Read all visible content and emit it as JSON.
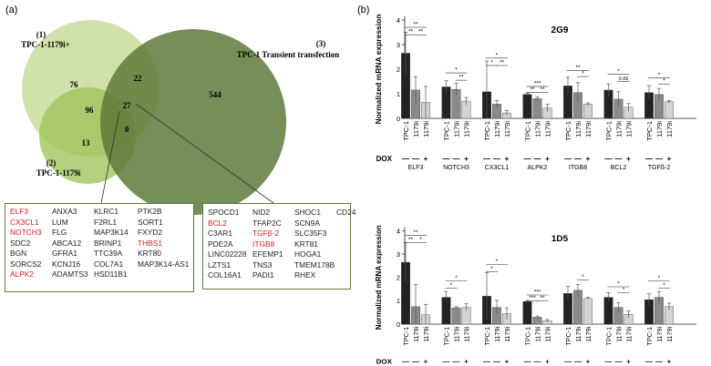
{
  "panel_a": {
    "label": "(a)",
    "venn": {
      "set1": {
        "number": "(1)",
        "name": "TPC-1-1179i+"
      },
      "set2": {
        "number": "(2)",
        "name": "TPC-1-1179i"
      },
      "set3": {
        "number": "(3)",
        "name": "TPC-1 Transient transfection"
      },
      "counts": {
        "only1": "76",
        "only3": "544",
        "s1_s3": "22",
        "s1_s2": "96",
        "all": "27",
        "only2": "13",
        "s2_s3": "0"
      },
      "colors": {
        "set1": "#c9dc9b",
        "set2": "#9bc255",
        "set3": "#5e7a3a"
      }
    },
    "left_box_columns": [
      [
        "ELF3",
        "CX3CL1",
        "NOTCH3",
        "SDC2",
        "BGN",
        "SORCS2",
        "ALPK2"
      ],
      [
        "ANXA3",
        "LUM",
        "FLG",
        "ABCA12",
        "GFRA1",
        "KCNJ16",
        "ADAMTS3"
      ],
      [
        "KLRC1",
        "F2RL1",
        "MAP3K14",
        "BRINP1",
        "TTC39A",
        "COL7A1",
        "HSD11B1"
      ],
      [
        "PTK2B",
        "SORT1",
        "FXYD2",
        "THBS1",
        "KRT80",
        "MAP3K14-AS1"
      ]
    ],
    "right_box_columns": [
      [
        "SPOCD1",
        "BCL2",
        "C3AR1",
        "PDE2A",
        "LINC02228",
        "LZTS1",
        "COL16A1"
      ],
      [
        "NID2",
        "TFAP2C",
        "TGFβ-2",
        "ITGB8",
        "EFEMP1",
        "TNS3",
        "PADI1"
      ],
      [
        "SHOC1",
        "SCN9A",
        "SLC35F3",
        "KRT81",
        "HOGA1",
        "TMEM178B",
        "RHEX"
      ],
      [
        "CD24"
      ]
    ],
    "highlighted_genes": [
      "ELF3",
      "CX3CL1",
      "NOTCH3",
      "ALPK2",
      "THBS1",
      "BCL2",
      "TGFβ-2",
      "ITGB8"
    ],
    "highlight_color": "#cc1f1f"
  },
  "panel_b": {
    "label": "(b)",
    "ylabel": "Normalized mRNA expression",
    "xtick_labels": [
      "TPC-1",
      "1179i",
      "1179i"
    ],
    "dox_label": "DOX",
    "dox_signs": [
      "—",
      "—",
      "+"
    ],
    "chart_data": [
      {
        "type": "bar",
        "title": "2G9",
        "ylabel": "Normalized mRNA expression",
        "ylim": [
          0,
          4
        ],
        "yticks": [
          "0",
          "1",
          "2",
          "3",
          "4"
        ],
        "groups": [
          "ELF3",
          "NOTCH3",
          "CX3CL1",
          "ALPK2",
          "ITGB8",
          "BCL2",
          "TGFß-2"
        ],
        "series": [
          {
            "values": [
              2.65,
              1.28,
              1.08,
              0.97,
              1.32,
              1.15,
              1.05
            ],
            "errors": [
              0.85,
              0.25,
              1.25,
              0.05,
              0.35,
              0.25,
              0.28
            ]
          },
          {
            "values": [
              1.15,
              1.18,
              0.58,
              0.8,
              1.05,
              0.78,
              0.97
            ],
            "errors": [
              0.55,
              0.25,
              0.15,
              0.08,
              0.4,
              0.3,
              0.25
            ]
          },
          {
            "values": [
              0.65,
              0.7,
              0.22,
              0.42,
              0.58,
              0.45,
              0.68
            ],
            "errors": [
              0.65,
              0.15,
              0.1,
              0.15,
              0.05,
              0.15,
              0.05
            ]
          }
        ],
        "annotations": [
          {
            "group": 0,
            "brackets": [
              [
                "**",
                0,
                2,
                3.7
              ],
              [
                "**",
                0,
                1,
                3.4
              ],
              [
                "**",
                1,
                2,
                3.4
              ]
            ]
          },
          {
            "group": 1,
            "brackets": [
              [
                "*",
                0,
                2,
                1.85
              ],
              [
                "**",
                1,
                2,
                1.55
              ]
            ]
          },
          {
            "group": 2,
            "brackets": [
              [
                "*",
                0,
                2,
                2.45
              ],
              [
                "*",
                0,
                1,
                2.15
              ],
              [
                "**",
                1,
                2,
                2.15
              ]
            ]
          },
          {
            "group": 3,
            "brackets": [
              [
                "***",
                0,
                2,
                1.3
              ],
              [
                "**",
                0,
                1,
                1.05
              ],
              [
                "**",
                1,
                2,
                1.05
              ]
            ]
          },
          {
            "group": 4,
            "brackets": [
              [
                "**",
                0,
                2,
                1.95
              ],
              [
                "*",
                1,
                2,
                1.7
              ]
            ]
          },
          {
            "group": 5,
            "brackets": [
              [
                "*",
                0,
                2,
                1.8
              ],
              [
                "0.06",
                1,
                2,
                1.5
              ]
            ]
          },
          {
            "group": 6,
            "brackets": [
              [
                "*",
                0,
                2,
                1.65
              ],
              [
                "*",
                1,
                2,
                1.4
              ]
            ]
          }
        ]
      },
      {
        "type": "bar",
        "title": "1D5",
        "ylabel": "Normalized mRNA expression",
        "ylim": [
          0,
          4
        ],
        "yticks": [
          "0",
          "1",
          "2",
          "3",
          "4"
        ],
        "groups": [
          "ELF3",
          "NOTCH3",
          "CX3CL1",
          "ALPK2",
          "ITGB8",
          "BCL2",
          "TGFß-2"
        ],
        "series": [
          {
            "values": [
              2.65,
              1.15,
              1.2,
              0.97,
              1.32,
              1.15,
              1.05
            ],
            "errors": [
              0.85,
              0.25,
              1.0,
              0.05,
              0.3,
              0.2,
              0.25
            ]
          },
          {
            "values": [
              0.75,
              0.7,
              0.72,
              0.3,
              1.45,
              0.72,
              1.15
            ],
            "errors": [
              0.95,
              0.05,
              0.3,
              0.05,
              0.25,
              0.2,
              0.25
            ]
          },
          {
            "values": [
              0.4,
              0.72,
              0.45,
              0.15,
              1.1,
              0.42,
              0.75
            ],
            "errors": [
              0.45,
              0.15,
              0.25,
              0.05,
              0.05,
              0.15,
              0.15
            ]
          }
        ],
        "annotations": [
          {
            "group": 0,
            "brackets": [
              [
                "**",
                0,
                2,
                3.8
              ],
              [
                "**",
                0,
                1,
                3.5
              ],
              [
                "*",
                1,
                2,
                3.5
              ]
            ]
          },
          {
            "group": 1,
            "brackets": [
              [
                "*",
                0,
                2,
                1.85
              ],
              [
                "*",
                0,
                1,
                1.55
              ]
            ]
          },
          {
            "group": 2,
            "brackets": [
              [
                "*",
                0,
                2,
                2.55
              ],
              [
                "*",
                0,
                1,
                2.25
              ]
            ]
          },
          {
            "group": 3,
            "brackets": [
              [
                "***",
                0,
                2,
                1.25
              ],
              [
                "***",
                0,
                1,
                1.0
              ],
              [
                "**",
                1,
                2,
                1.0
              ]
            ]
          },
          {
            "group": 4,
            "brackets": [
              [
                "*",
                1,
                2,
                1.9
              ]
            ]
          },
          {
            "group": 5,
            "brackets": [
              [
                "*",
                0,
                2,
                1.6
              ],
              [
                "*",
                1,
                2,
                1.35
              ]
            ]
          },
          {
            "group": 6,
            "brackets": [
              [
                "*",
                0,
                2,
                1.85
              ],
              [
                "*",
                1,
                2,
                1.55
              ]
            ]
          }
        ]
      }
    ],
    "bar_colors": [
      "#222222",
      "#8a8a8a",
      "#d3d3d3"
    ]
  }
}
